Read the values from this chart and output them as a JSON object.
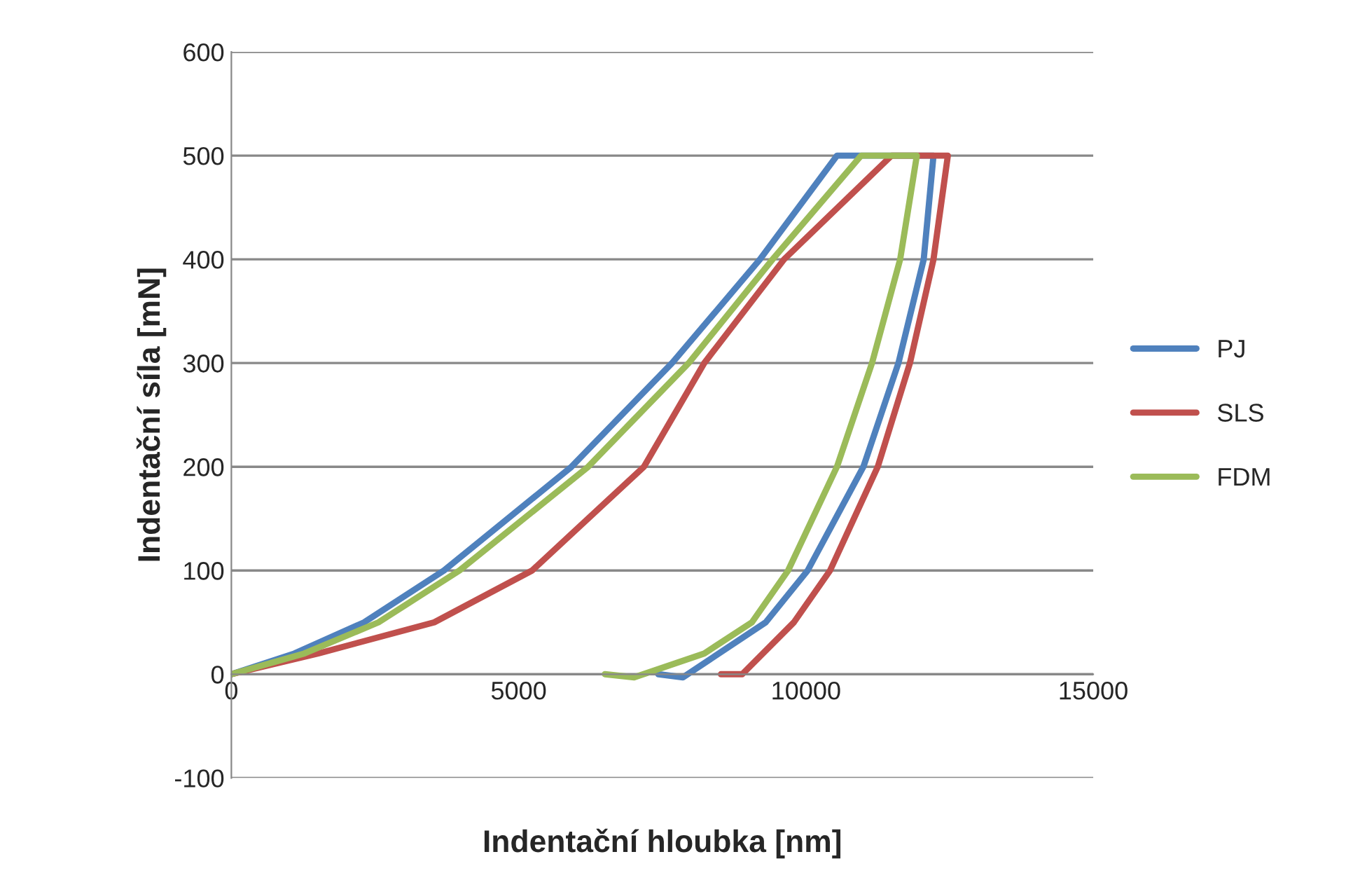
{
  "chart_data": {
    "type": "line",
    "xlabel": "Indentační hloubka [nm]",
    "ylabel": "Indentační síla [mN]",
    "xlim": [
      0,
      15000
    ],
    "xticks": [
      0,
      5000,
      10000,
      15000
    ],
    "ylim": [
      -100,
      600
    ],
    "yticks": [
      -100,
      0,
      100,
      200,
      300,
      400,
      500,
      600
    ],
    "grid": "y",
    "legend": "right",
    "marker": "none",
    "line_style": "solid",
    "series": [
      {
        "name": "PJ",
        "color": "#4f81bd",
        "x": [
          0,
          1100,
          2310,
          3700,
          5920,
          7670,
          9200,
          10540,
          12220,
          12050,
          11610,
          11000,
          10030,
          9300,
          7860,
          7430
        ],
        "values": [
          0,
          20,
          50,
          100,
          200,
          300,
          400,
          500,
          500,
          400,
          300,
          200,
          100,
          50,
          -3,
          0
        ]
      },
      {
        "name": "SLS",
        "color": "#c0504d",
        "x": [
          0,
          1510,
          3530,
          5235,
          7180,
          8230,
          9620,
          11490,
          12470,
          12220,
          11810,
          11250,
          10420,
          9790,
          8890,
          8520
        ],
        "values": [
          0,
          20,
          50,
          100,
          200,
          300,
          400,
          500,
          500,
          400,
          300,
          200,
          100,
          50,
          0,
          0
        ]
      },
      {
        "name": "FDM",
        "color": "#9bbb59",
        "x": [
          0,
          1270,
          2560,
          3970,
          6210,
          7960,
          9420,
          10960,
          11930,
          11640,
          11150,
          10540,
          9690,
          9060,
          8230,
          7010,
          6500
        ],
        "values": [
          0,
          20,
          50,
          100,
          200,
          300,
          400,
          500,
          500,
          400,
          300,
          200,
          100,
          50,
          20,
          -3,
          0
        ]
      }
    ]
  }
}
